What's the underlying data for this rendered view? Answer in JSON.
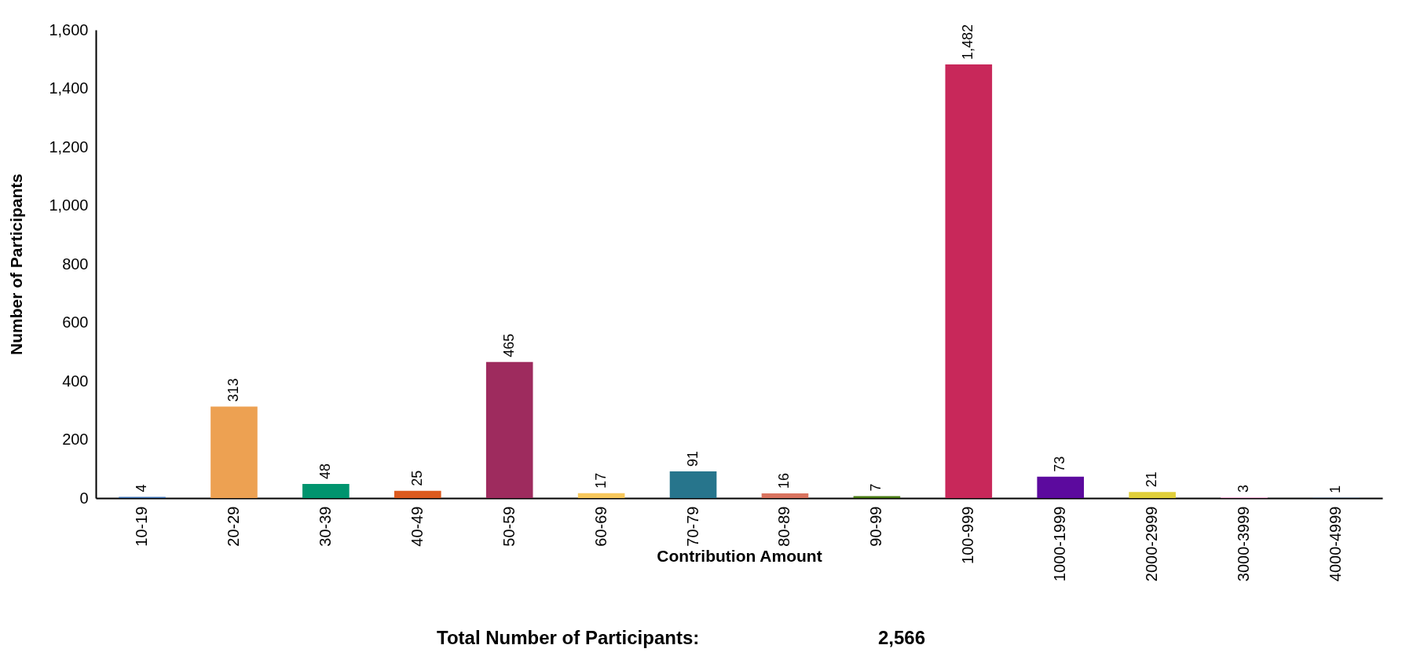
{
  "chart_data": {
    "type": "bar",
    "xlabel": "Contribution Amount",
    "ylabel": "Number of Participants",
    "categories": [
      "10-19",
      "20-29",
      "30-39",
      "40-49",
      "50-59",
      "60-69",
      "70-79",
      "80-89",
      "90-99",
      "100-999",
      "1000-1999",
      "2000-2999",
      "3000-3999",
      "4000-4999"
    ],
    "values": [
      4,
      313,
      48,
      25,
      465,
      17,
      91,
      16,
      7,
      1482,
      73,
      21,
      3,
      1
    ],
    "value_labels": [
      "4",
      "313",
      "48",
      "25",
      "465",
      "17",
      "91",
      "16",
      "7",
      "1,482",
      "73",
      "21",
      "3",
      "1"
    ],
    "colors": [
      "#3a6fb0",
      "#eda152",
      "#00946e",
      "#dc5a1e",
      "#9e2b5e",
      "#f7c85c",
      "#27758c",
      "#d9735f",
      "#4a7c15",
      "#c8285a",
      "#5c0a9e",
      "#e0cf3a",
      "#eba9cf",
      "#5b96d8"
    ],
    "ylim": [
      0,
      1600
    ],
    "yticks": [
      0,
      200,
      400,
      600,
      800,
      {
        "value": 1000,
        "label": "1,000"
      },
      {
        "value": 1200,
        "label": "1,200"
      },
      {
        "value": 1400,
        "label": "1,400"
      },
      {
        "value": 1600,
        "label": "1,600"
      }
    ],
    "grid": false,
    "annotations": [
      "Total Number of Participants:",
      "2,566"
    ]
  }
}
